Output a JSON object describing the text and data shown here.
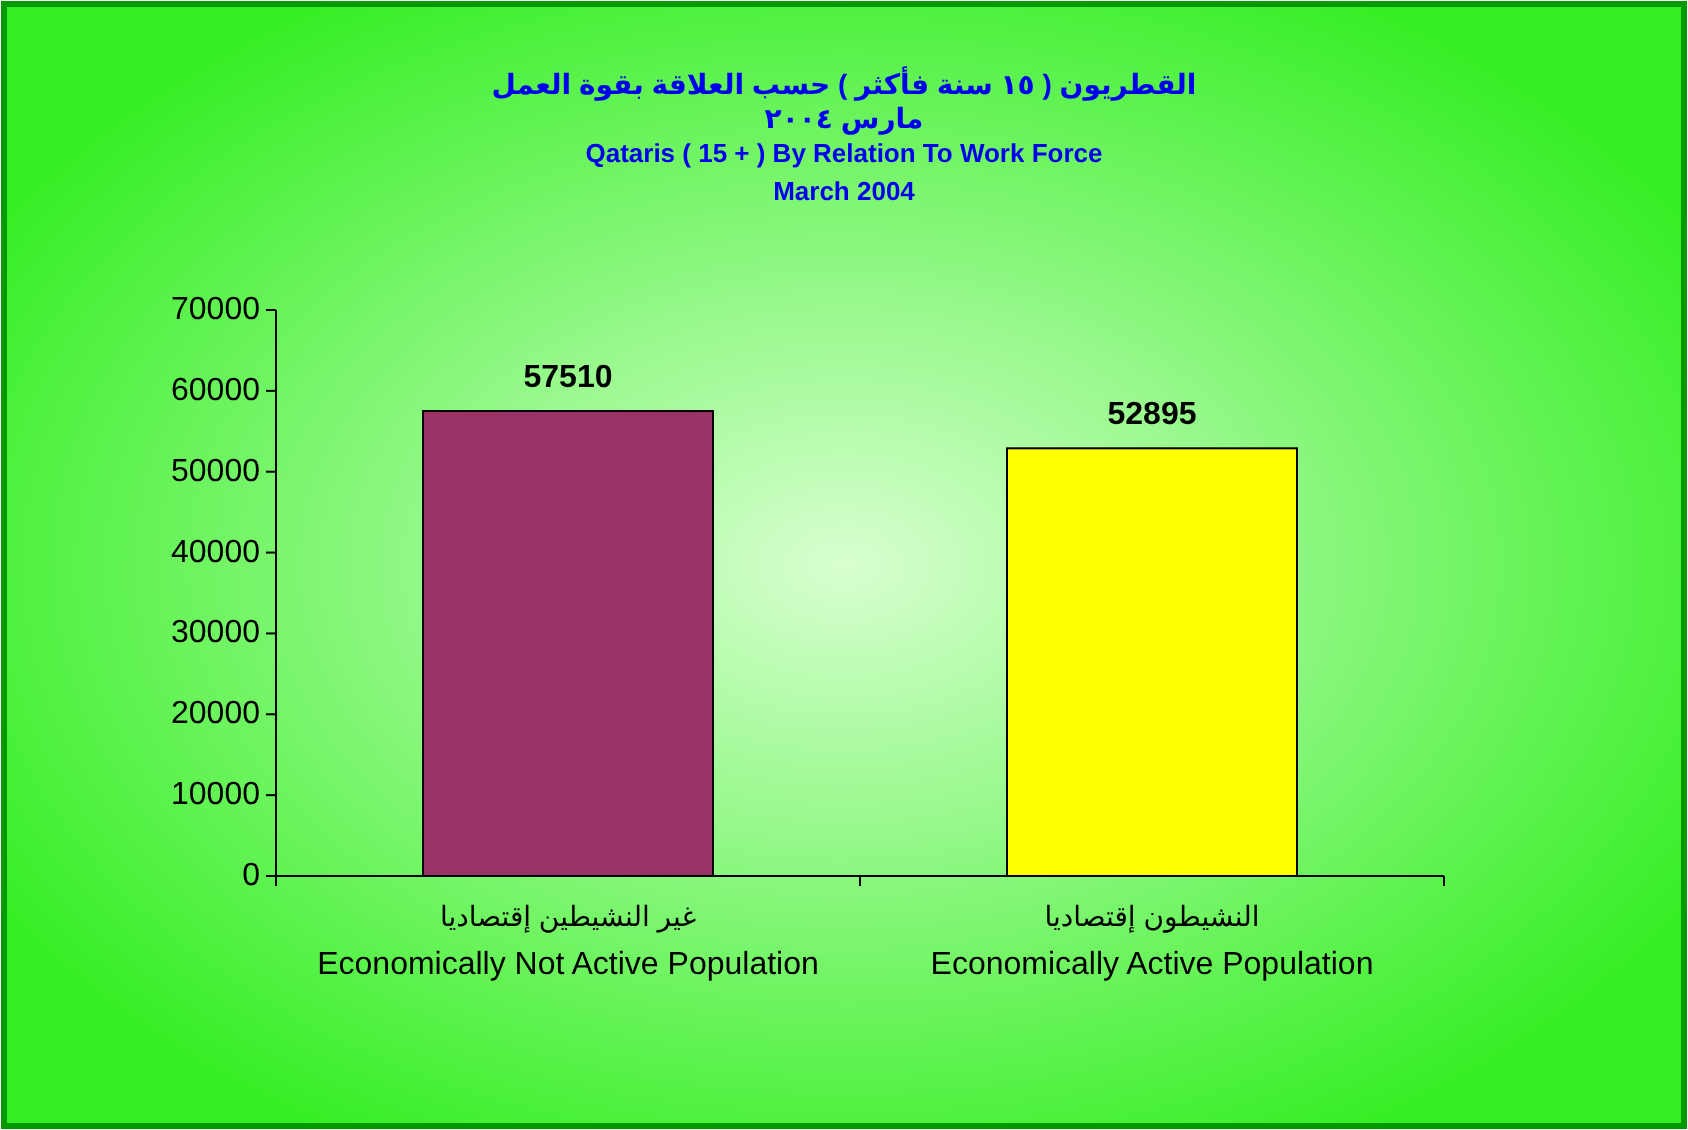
{
  "chart_data": {
    "type": "bar",
    "title": "القطريون ( ١٥ سنة فأكثر ) حسب العلاقة بقوة العمل\nمارس ٢٠٠٤",
    "subtitle": "Qataris ( 15 + ) By Relation To Work Force\nMarch 2004",
    "categories": [
      "غير النشيطين إقتصاديا\nEconomically Not Active Population",
      "النشيطون إقتصاديا\nEconomically Active Population"
    ],
    "values": [
      57510,
      52895
    ],
    "colors": [
      "#993366",
      "#ffff00"
    ],
    "ylim": [
      0,
      70000
    ],
    "yticks": [
      0,
      10000,
      20000,
      30000,
      40000,
      50000,
      60000,
      70000
    ],
    "data_labels": true
  }
}
